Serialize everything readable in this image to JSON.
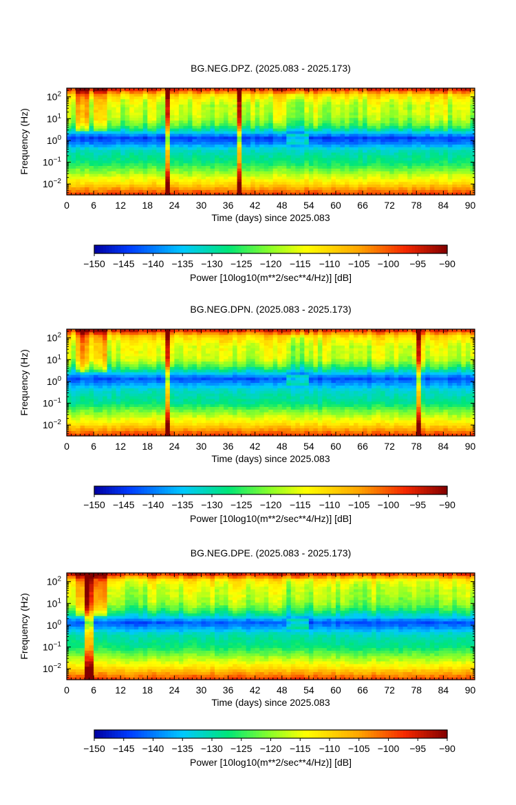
{
  "chart_data": [
    {
      "type": "heatmap",
      "title": "BG.NEG.DPZ. (2025.083 - 2025.173)",
      "xlabel": "Time (days) since 2025.083",
      "ylabel": "Frequency (Hz)",
      "xlim": [
        0,
        91
      ],
      "xticks": [
        "0",
        "6",
        "12",
        "18",
        "24",
        "30",
        "36",
        "42",
        "48",
        "54",
        "60",
        "66",
        "72",
        "78",
        "84",
        "90"
      ],
      "ylim_log10": [
        -2.5,
        2.4
      ],
      "yscale": "log",
      "yticks": [
        {
          "base": "10",
          "exp": "2"
        },
        {
          "base": "10",
          "exp": "1"
        },
        {
          "base": "10",
          "exp": "0"
        },
        {
          "base": "10",
          "exp": "−1"
        },
        {
          "base": "10",
          "exp": "−2"
        }
      ],
      "colorbar": {
        "label": "Power [10log10(m**2/sec**4/Hz)] [dB]",
        "range": [
          -150,
          -90
        ],
        "ticks": [
          "−150",
          "−145",
          "−140",
          "−135",
          "−130",
          "−125",
          "−120",
          "−115",
          "−110",
          "−105",
          "−100",
          "−95",
          "−90"
        ]
      },
      "profile_db": [
        {
          "log_f": 2.35,
          "db": -97
        },
        {
          "log_f": 2.1,
          "db": -110
        },
        {
          "log_f": 1.9,
          "db": -114
        },
        {
          "log_f": 1.6,
          "db": -117
        },
        {
          "log_f": 1.3,
          "db": -117
        },
        {
          "log_f": 1.0,
          "db": -119
        },
        {
          "log_f": 0.7,
          "db": -123
        },
        {
          "log_f": 0.4,
          "db": -133
        },
        {
          "log_f": 0.15,
          "db": -144
        },
        {
          "log_f": -0.1,
          "db": -140
        },
        {
          "log_f": -0.4,
          "db": -132
        },
        {
          "log_f": -0.7,
          "db": -129
        },
        {
          "log_f": -1.0,
          "db": -127
        },
        {
          "log_f": -1.3,
          "db": -122
        },
        {
          "log_f": -1.6,
          "db": -117
        },
        {
          "log_f": -1.9,
          "db": -112
        },
        {
          "log_f": -2.15,
          "db": -106
        },
        {
          "log_f": -2.5,
          "db": -97
        }
      ],
      "events": [
        {
          "day": 3.5,
          "type": "burst"
        },
        {
          "day": 7.5,
          "type": "burst"
        },
        {
          "day": 22.5,
          "type": "spike"
        },
        {
          "day": 38.5,
          "type": "spike"
        },
        {
          "day": 49.5,
          "type": "quiet_start"
        },
        {
          "day": 53.5,
          "type": "quiet_end"
        }
      ]
    },
    {
      "type": "heatmap",
      "title": "BG.NEG.DPN. (2025.083 - 2025.173)",
      "xlabel": "Time (days) since 2025.083",
      "ylabel": "Frequency (Hz)",
      "xlim": [
        0,
        91
      ],
      "xticks": [
        "0",
        "6",
        "12",
        "18",
        "24",
        "30",
        "36",
        "42",
        "48",
        "54",
        "60",
        "66",
        "72",
        "78",
        "84",
        "90"
      ],
      "ylim_log10": [
        -2.5,
        2.4
      ],
      "yscale": "log",
      "yticks": [
        {
          "base": "10",
          "exp": "2"
        },
        {
          "base": "10",
          "exp": "1"
        },
        {
          "base": "10",
          "exp": "0"
        },
        {
          "base": "10",
          "exp": "−1"
        },
        {
          "base": "10",
          "exp": "−2"
        }
      ],
      "colorbar": {
        "label": "Power [10log10(m**2/sec**4/Hz)] [dB]",
        "range": [
          -150,
          -90
        ],
        "ticks": [
          "−150",
          "−145",
          "−140",
          "−135",
          "−130",
          "−125",
          "−120",
          "−115",
          "−110",
          "−105",
          "−100",
          "−95",
          "−90"
        ]
      },
      "profile_db": [
        {
          "log_f": 2.35,
          "db": -97
        },
        {
          "log_f": 2.1,
          "db": -110
        },
        {
          "log_f": 1.9,
          "db": -113
        },
        {
          "log_f": 1.6,
          "db": -116
        },
        {
          "log_f": 1.3,
          "db": -116
        },
        {
          "log_f": 1.0,
          "db": -118
        },
        {
          "log_f": 0.7,
          "db": -124
        },
        {
          "log_f": 0.4,
          "db": -134
        },
        {
          "log_f": 0.15,
          "db": -143
        },
        {
          "log_f": -0.1,
          "db": -138
        },
        {
          "log_f": -0.4,
          "db": -132
        },
        {
          "log_f": -0.7,
          "db": -130
        },
        {
          "log_f": -1.0,
          "db": -128
        },
        {
          "log_f": -1.3,
          "db": -122
        },
        {
          "log_f": -1.6,
          "db": -117
        },
        {
          "log_f": -1.9,
          "db": -112
        },
        {
          "log_f": -2.15,
          "db": -106
        },
        {
          "log_f": -2.5,
          "db": -97
        }
      ],
      "events": [
        {
          "day": 3.5,
          "type": "burst"
        },
        {
          "day": 7.5,
          "type": "burst"
        },
        {
          "day": 22.5,
          "type": "spike"
        },
        {
          "day": 78.5,
          "type": "spike"
        },
        {
          "day": 49.5,
          "type": "quiet_start"
        },
        {
          "day": 53.5,
          "type": "quiet_end"
        }
      ]
    },
    {
      "type": "heatmap",
      "title": "BG.NEG.DPE. (2025.083 - 2025.173)",
      "xlabel": "Time (days) since 2025.083",
      "ylabel": "Frequency (Hz)",
      "xlim": [
        0,
        91
      ],
      "xticks": [
        "0",
        "6",
        "12",
        "18",
        "24",
        "30",
        "36",
        "42",
        "48",
        "54",
        "60",
        "66",
        "72",
        "78",
        "84",
        "90"
      ],
      "ylim_log10": [
        -2.5,
        2.4
      ],
      "yscale": "log",
      "yticks": [
        {
          "base": "10",
          "exp": "2"
        },
        {
          "base": "10",
          "exp": "1"
        },
        {
          "base": "10",
          "exp": "0"
        },
        {
          "base": "10",
          "exp": "−1"
        },
        {
          "base": "10",
          "exp": "−2"
        }
      ],
      "colorbar": {
        "label": "Power [10log10(m**2/sec**4/Hz)] [dB]",
        "range": [
          -150,
          -90
        ],
        "ticks": [
          "−150",
          "−145",
          "−140",
          "−135",
          "−130",
          "−125",
          "−120",
          "−115",
          "−110",
          "−105",
          "−100",
          "−95",
          "−90"
        ]
      },
      "profile_db": [
        {
          "log_f": 2.35,
          "db": -97
        },
        {
          "log_f": 2.1,
          "db": -112
        },
        {
          "log_f": 1.9,
          "db": -115
        },
        {
          "log_f": 1.6,
          "db": -117
        },
        {
          "log_f": 1.3,
          "db": -118
        },
        {
          "log_f": 1.0,
          "db": -120
        },
        {
          "log_f": 0.7,
          "db": -125
        },
        {
          "log_f": 0.4,
          "db": -133
        },
        {
          "log_f": 0.15,
          "db": -143
        },
        {
          "log_f": -0.1,
          "db": -138
        },
        {
          "log_f": -0.4,
          "db": -131
        },
        {
          "log_f": -0.7,
          "db": -129
        },
        {
          "log_f": -1.0,
          "db": -127
        },
        {
          "log_f": -1.3,
          "db": -122
        },
        {
          "log_f": -1.6,
          "db": -117
        },
        {
          "log_f": -1.9,
          "db": -112
        },
        {
          "log_f": -2.15,
          "db": -106
        },
        {
          "log_f": -2.5,
          "db": -98
        }
      ],
      "events": [
        {
          "day": 3.5,
          "type": "burst"
        },
        {
          "day": 7.5,
          "type": "burst"
        },
        {
          "day": 5,
          "type": "spike"
        },
        {
          "day": 49.5,
          "type": "quiet_start"
        },
        {
          "day": 53.5,
          "type": "quiet_end"
        }
      ]
    }
  ]
}
